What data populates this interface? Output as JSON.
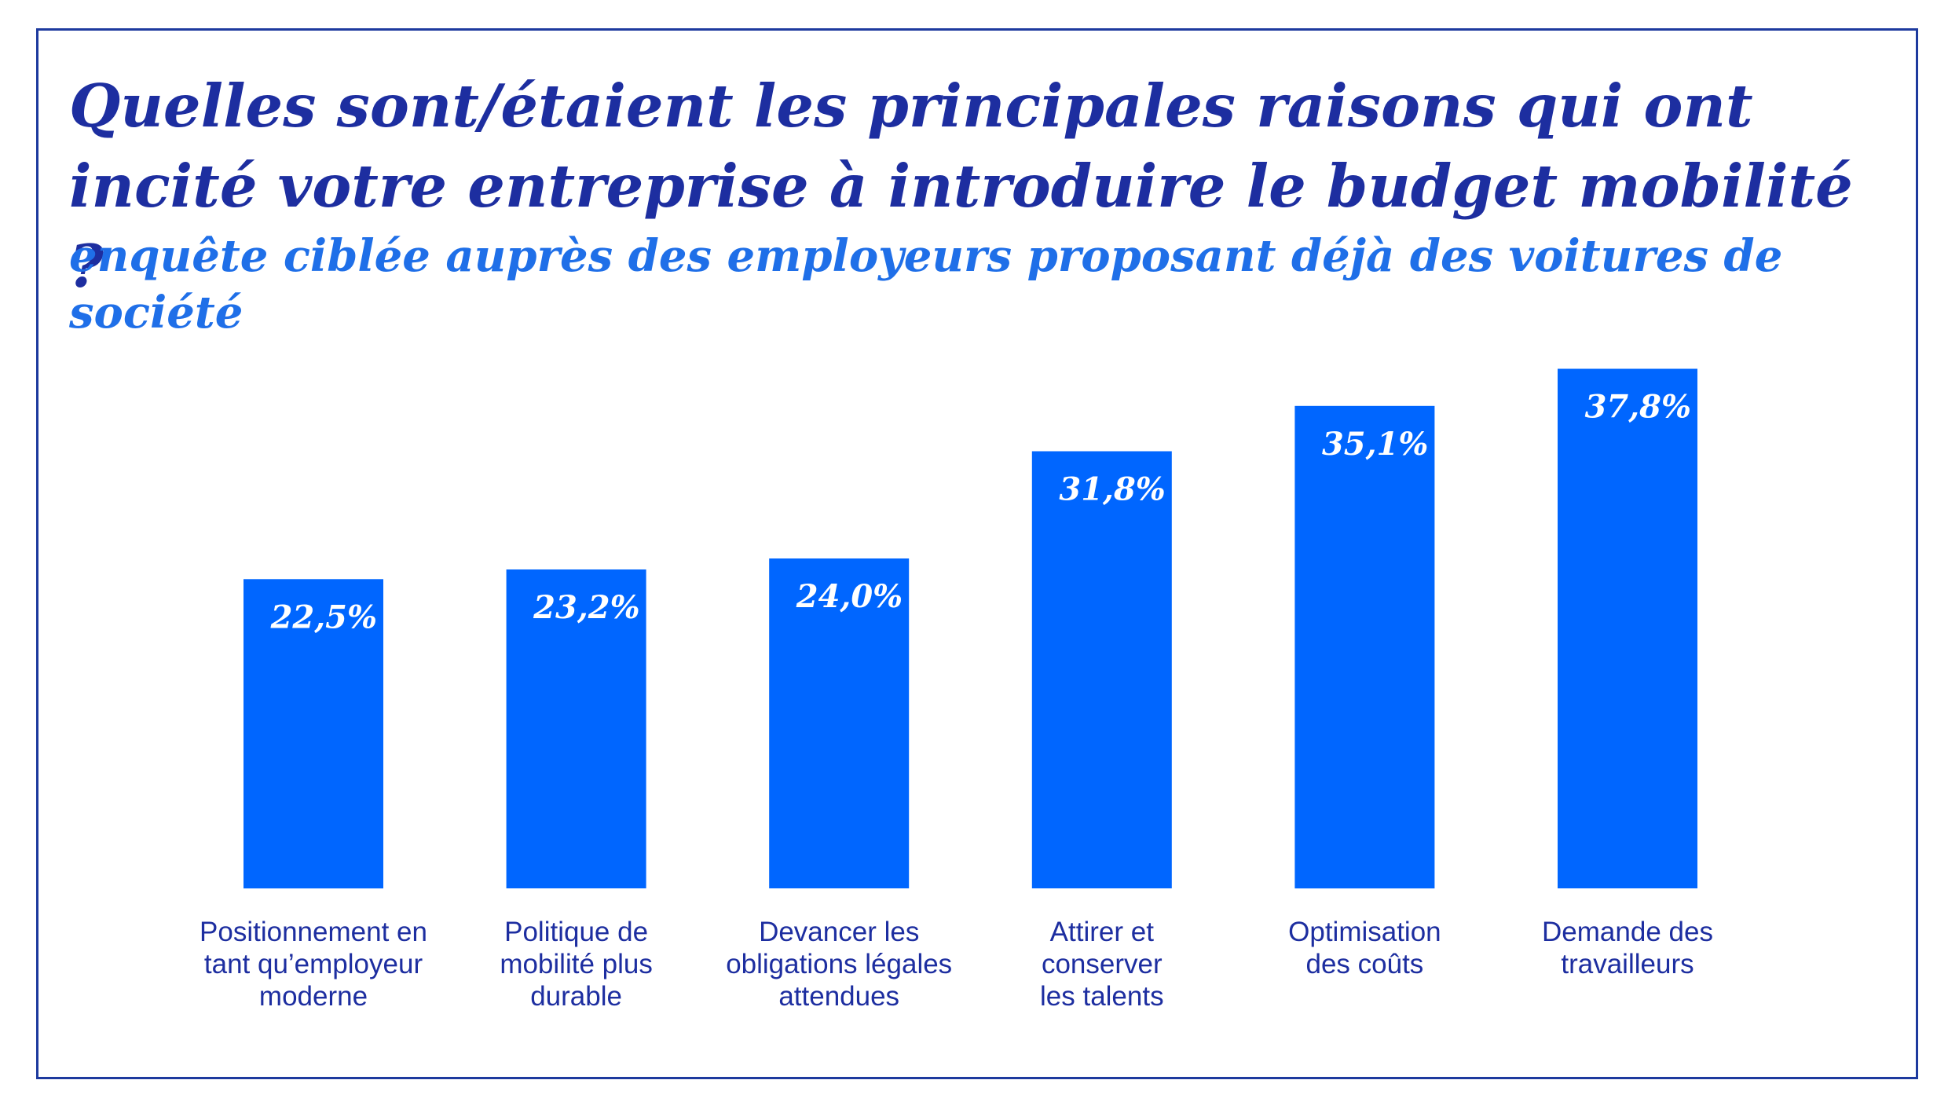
{
  "header": {
    "title": "Quelles sont/étaient les principales raisons qui ont incité votre entreprise à introduire le budget mobilité ?",
    "subtitle": "enquête ciblée auprès des employeurs proposant déjà des voitures de société"
  },
  "colors": {
    "bar": "#0066ff",
    "title": "#1d2ea0",
    "subtitle": "#1f6fe8",
    "label": "#1d2ea0",
    "frame": "#1d3a9e"
  },
  "chart_data": {
    "type": "bar",
    "title": "Quelles sont/étaient les principales raisons qui ont incité votre entreprise à introduire le budget mobilité ?",
    "subtitle": "enquête ciblée auprès des employeurs proposant déjà des voitures de société",
    "categories": [
      [
        "Positionnement en",
        "tant qu’employeur",
        "moderne"
      ],
      [
        "Politique de",
        "mobilité plus",
        "durable"
      ],
      [
        "Devancer les",
        "obligations légales",
        "attendues"
      ],
      [
        "Attirer et",
        "conserver",
        "les talents"
      ],
      [
        "Optimisation",
        "des coûts"
      ],
      [
        "Demande des",
        "travailleurs"
      ]
    ],
    "values": [
      22.5,
      23.2,
      24.0,
      31.8,
      35.1,
      37.8
    ],
    "value_labels": [
      "22,5%",
      "23,2%",
      "24,0%",
      "31,8%",
      "35,1%",
      "37,8%"
    ],
    "xlabel": "",
    "ylabel": "",
    "grid": false,
    "legend": "none"
  }
}
